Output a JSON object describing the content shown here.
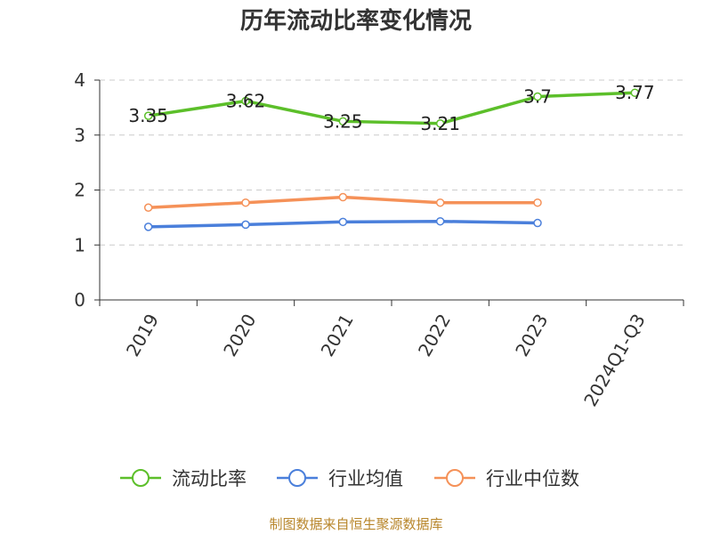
{
  "chart_data": {
    "type": "line",
    "title": "历年流动比率变化情况",
    "categories": [
      "2019",
      "2020",
      "2021",
      "2022",
      "2023",
      "2024Q1-Q3"
    ],
    "ylim": [
      0,
      4
    ],
    "yticks": [
      0,
      1,
      2,
      3,
      4
    ],
    "grid": true,
    "legend_position": "bottom",
    "series": [
      {
        "name": "流动比率",
        "color": "#5cbf2a",
        "values": [
          3.35,
          3.62,
          3.25,
          3.21,
          3.7,
          3.77
        ],
        "labels": [
          "3.35",
          "3.62",
          "3.25",
          "3.21",
          "3.7",
          "3.77"
        ]
      },
      {
        "name": "行业均值",
        "color": "#4a7fdb",
        "values": [
          1.33,
          1.37,
          1.42,
          1.43,
          1.4,
          null
        ]
      },
      {
        "name": "行业中位数",
        "color": "#f59158",
        "values": [
          1.68,
          1.77,
          1.87,
          1.77,
          1.77,
          null
        ]
      }
    ]
  },
  "footer": {
    "source": "制图数据来自恒生聚源数据库"
  }
}
